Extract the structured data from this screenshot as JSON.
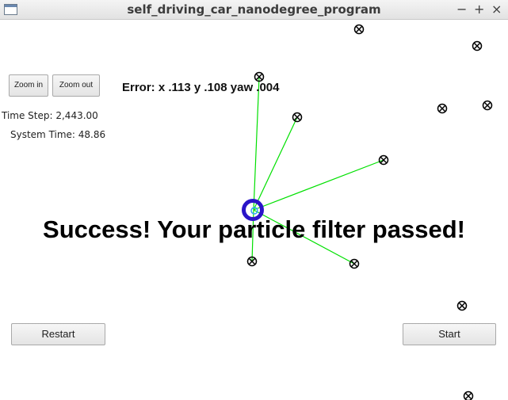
{
  "window": {
    "title": "self_driving_car_nanodegree_program",
    "controls": [
      "−",
      "+",
      "×"
    ]
  },
  "toolbar": {
    "zoom_in_label": "Zoom in",
    "zoom_out_label": "Zoom out"
  },
  "status": {
    "time_step": "Time Step: 2,443.00",
    "system_time": "System Time: 48.86"
  },
  "error_text": "Error: x .113 y .108 yaw .004",
  "result_message": "Success! Your particle filter passed!",
  "buttons": {
    "restart_label": "Restart",
    "start_label": "Start"
  },
  "colors": {
    "observation_line": "#00e000",
    "vehicle": "#2a14c8",
    "landmark": "#000000"
  }
}
